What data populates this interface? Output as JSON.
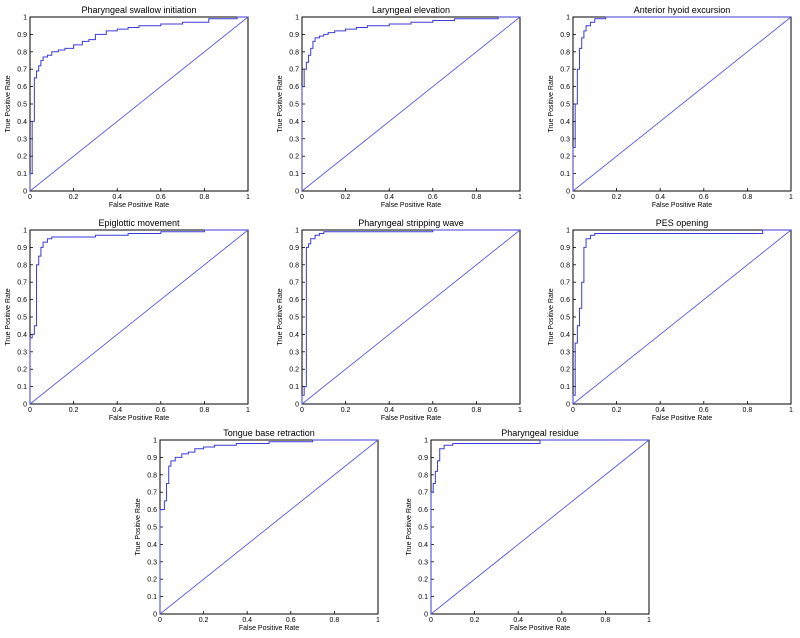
{
  "chart_data": [
    {
      "type": "line",
      "title": "Pharyngeal swallow initiation",
      "xlabel": "False Positive Rate",
      "ylabel": "True Positive Rate",
      "xlim": [
        0,
        1
      ],
      "ylim": [
        0,
        1
      ],
      "xticks": [
        "0",
        "0.2",
        "0.4",
        "0.6",
        "0.8",
        "1"
      ],
      "yticks": [
        "0",
        "0.1",
        "0.2",
        "0.3",
        "0.4",
        "0.5",
        "0.6",
        "0.7",
        "0.8",
        "0.9",
        "1"
      ],
      "series": [
        {
          "x": [
            0,
            0,
            0.01,
            0.01,
            0.02,
            0.02,
            0.03,
            0.04,
            0.05,
            0.06,
            0.08,
            0.1,
            0.13,
            0.16,
            0.2,
            0.24,
            0.27,
            0.3,
            0.35,
            0.4,
            0.45,
            0.5,
            0.6,
            0.7,
            0.8,
            0.82,
            0.9,
            0.95,
            1.0
          ],
          "y": [
            0,
            0.1,
            0.12,
            0.4,
            0.55,
            0.65,
            0.69,
            0.72,
            0.75,
            0.77,
            0.78,
            0.8,
            0.81,
            0.82,
            0.84,
            0.86,
            0.87,
            0.9,
            0.92,
            0.93,
            0.94,
            0.95,
            0.96,
            0.97,
            0.97,
            0.99,
            0.99,
            1.0,
            1.0
          ]
        },
        {
          "x": [
            0,
            1
          ],
          "y": [
            0,
            1
          ]
        }
      ]
    },
    {
      "type": "line",
      "title": "Laryngeal elevation",
      "xlabel": "False Positive Rate",
      "ylabel": "True Positive Rate",
      "xlim": [
        0,
        1
      ],
      "ylim": [
        0,
        1
      ],
      "xticks": [
        "0",
        "0.2",
        "0.4",
        "0.6",
        "0.8",
        "1"
      ],
      "yticks": [
        "0",
        "0.1",
        "0.2",
        "0.3",
        "0.4",
        "0.5",
        "0.6",
        "0.7",
        "0.8",
        "0.9",
        "1"
      ],
      "series": [
        {
          "x": [
            0,
            0,
            0.01,
            0.01,
            0.02,
            0.03,
            0.04,
            0.05,
            0.06,
            0.08,
            0.1,
            0.12,
            0.15,
            0.2,
            0.25,
            0.3,
            0.4,
            0.5,
            0.6,
            0.7,
            0.8,
            0.9,
            1.0
          ],
          "y": [
            0,
            0.6,
            0.65,
            0.7,
            0.74,
            0.78,
            0.82,
            0.86,
            0.88,
            0.89,
            0.9,
            0.91,
            0.92,
            0.93,
            0.94,
            0.95,
            0.96,
            0.97,
            0.98,
            0.99,
            0.99,
            1.0,
            1.0
          ]
        },
        {
          "x": [
            0,
            1
          ],
          "y": [
            0,
            1
          ]
        }
      ]
    },
    {
      "type": "line",
      "title": "Anterior hyoid excursion",
      "xlabel": "False Positive Rate",
      "ylabel": "True Positive Rate",
      "xlim": [
        0,
        1
      ],
      "ylim": [
        0,
        1
      ],
      "xticks": [
        "0",
        "0.2",
        "0.4",
        "0.6",
        "0.8",
        "1"
      ],
      "yticks": [
        "0",
        "0.1",
        "0.2",
        "0.3",
        "0.4",
        "0.5",
        "0.6",
        "0.7",
        "0.8",
        "0.9",
        "1"
      ],
      "series": [
        {
          "x": [
            0,
            0,
            0.01,
            0.01,
            0.02,
            0.02,
            0.03,
            0.03,
            0.04,
            0.05,
            0.06,
            0.08,
            0.1,
            0.15,
            0.3,
            1.0
          ],
          "y": [
            0,
            0.25,
            0.3,
            0.5,
            0.55,
            0.7,
            0.75,
            0.82,
            0.88,
            0.92,
            0.95,
            0.97,
            0.99,
            1.0,
            1.0,
            1.0
          ]
        },
        {
          "x": [
            0,
            1
          ],
          "y": [
            0,
            1
          ]
        }
      ]
    },
    {
      "type": "line",
      "title": "Epiglottic movement",
      "xlabel": "False Positive Rate",
      "ylabel": "True Positive Rate",
      "xlim": [
        0,
        1
      ],
      "ylim": [
        0,
        1
      ],
      "xticks": [
        "0",
        "0.2",
        "0.4",
        "0.6",
        "0.8",
        "1"
      ],
      "yticks": [
        "0",
        "0.1",
        "0.2",
        "0.3",
        "0.4",
        "0.5",
        "0.6",
        "0.7",
        "0.8",
        "0.9",
        "1"
      ],
      "series": [
        {
          "x": [
            0,
            0,
            0.01,
            0.02,
            0.03,
            0.03,
            0.04,
            0.05,
            0.06,
            0.08,
            0.1,
            0.3,
            0.45,
            0.6,
            0.8,
            1.0
          ],
          "y": [
            0,
            0.38,
            0.4,
            0.45,
            0.55,
            0.8,
            0.85,
            0.9,
            0.93,
            0.95,
            0.96,
            0.97,
            0.98,
            0.99,
            1.0,
            1.0
          ]
        },
        {
          "x": [
            0,
            1
          ],
          "y": [
            0,
            1
          ]
        }
      ]
    },
    {
      "type": "line",
      "title": "Pharyngeal stripping wave",
      "xlabel": "False Positive Rate",
      "ylabel": "True Positive Rate",
      "xlim": [
        0,
        1
      ],
      "ylim": [
        0,
        1
      ],
      "xticks": [
        "0",
        "0.2",
        "0.4",
        "0.6",
        "0.8",
        "1"
      ],
      "yticks": [
        "0",
        "0.1",
        "0.2",
        "0.3",
        "0.4",
        "0.5",
        "0.6",
        "0.7",
        "0.8",
        "0.9",
        "1"
      ],
      "series": [
        {
          "x": [
            0,
            0,
            0.01,
            0.02,
            0.02,
            0.03,
            0.04,
            0.06,
            0.08,
            0.1,
            0.3,
            0.6,
            1.0
          ],
          "y": [
            0,
            0.05,
            0.1,
            0.85,
            0.9,
            0.92,
            0.95,
            0.97,
            0.98,
            0.99,
            0.99,
            1.0,
            1.0
          ]
        },
        {
          "x": [
            0,
            1
          ],
          "y": [
            0,
            1
          ]
        }
      ]
    },
    {
      "type": "line",
      "title": "PES opening",
      "xlabel": "False Positive Rate",
      "ylabel": "True Positive Rate",
      "xlim": [
        0,
        1
      ],
      "ylim": [
        0,
        1
      ],
      "xticks": [
        "0",
        "0.2",
        "0.4",
        "0.6",
        "0.8",
        "1"
      ],
      "yticks": [
        "0",
        "0.1",
        "0.2",
        "0.3",
        "0.4",
        "0.5",
        "0.6",
        "0.7",
        "0.8",
        "0.9",
        "1"
      ],
      "series": [
        {
          "x": [
            0,
            0,
            0.01,
            0.01,
            0.02,
            0.03,
            0.04,
            0.05,
            0.06,
            0.08,
            0.1,
            0.55,
            0.87,
            1.0
          ],
          "y": [
            0,
            0.05,
            0.1,
            0.35,
            0.45,
            0.55,
            0.7,
            0.9,
            0.95,
            0.97,
            0.98,
            0.98,
            1.0,
            1.0
          ]
        },
        {
          "x": [
            0,
            1
          ],
          "y": [
            0,
            1
          ]
        }
      ]
    },
    {
      "type": "line",
      "title": "Tongue base retraction",
      "xlabel": "False Positive Rate",
      "ylabel": "True Positive Rate",
      "xlim": [
        0,
        1
      ],
      "ylim": [
        0,
        1
      ],
      "xticks": [
        "0",
        "0.2",
        "0.4",
        "0.6",
        "0.8",
        "1"
      ],
      "yticks": [
        "0",
        "0.1",
        "0.2",
        "0.3",
        "0.4",
        "0.5",
        "0.6",
        "0.7",
        "0.8",
        "0.9",
        "1"
      ],
      "series": [
        {
          "x": [
            0,
            0,
            0.02,
            0.03,
            0.04,
            0.05,
            0.07,
            0.1,
            0.13,
            0.16,
            0.2,
            0.25,
            0.35,
            0.5,
            0.7,
            1.0
          ],
          "y": [
            0,
            0.6,
            0.65,
            0.75,
            0.85,
            0.88,
            0.9,
            0.92,
            0.93,
            0.95,
            0.96,
            0.97,
            0.98,
            0.99,
            1.0,
            1.0
          ]
        },
        {
          "x": [
            0,
            1
          ],
          "y": [
            0,
            1
          ]
        }
      ]
    },
    {
      "type": "line",
      "title": "Pharyngeal residue",
      "xlabel": "False Positive Rate",
      "ylabel": "True Positive Rate",
      "xlim": [
        0,
        1
      ],
      "ylim": [
        0,
        1
      ],
      "xticks": [
        "0",
        "0.2",
        "0.4",
        "0.6",
        "0.8",
        "1"
      ],
      "yticks": [
        "0",
        "0.1",
        "0.2",
        "0.3",
        "0.4",
        "0.5",
        "0.6",
        "0.7",
        "0.8",
        "0.9",
        "1"
      ],
      "series": [
        {
          "x": [
            0,
            0,
            0.01,
            0.02,
            0.03,
            0.04,
            0.06,
            0.1,
            0.45,
            0.5,
            1.0
          ],
          "y": [
            0,
            0.7,
            0.75,
            0.82,
            0.88,
            0.95,
            0.97,
            0.98,
            0.98,
            1.0,
            1.0
          ]
        },
        {
          "x": [
            0,
            1
          ],
          "y": [
            0,
            1
          ]
        }
      ]
    }
  ],
  "colors": {
    "roc_curve": "#3b3bd6",
    "diagonal": "#5a5ae0",
    "axes": "#000000"
  }
}
